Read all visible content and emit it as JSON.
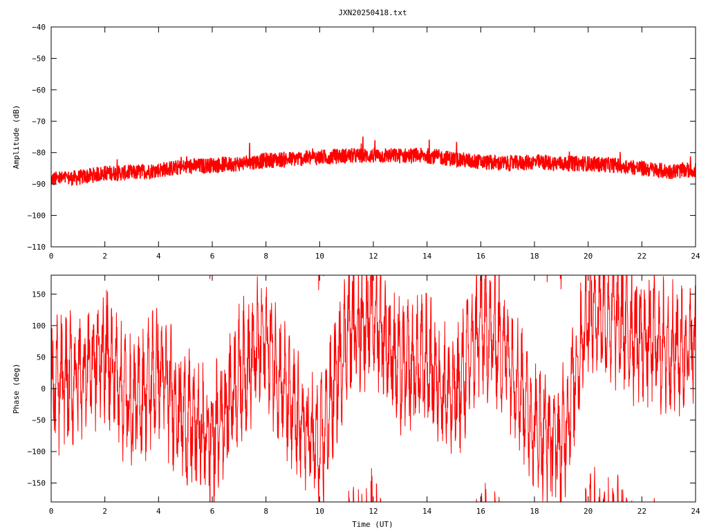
{
  "page_title": "JXN20250418.txt",
  "chart_data": [
    {
      "type": "line",
      "title": "JXN20250418.txt",
      "xlabel": "",
      "ylabel": "Amplitude (dB)",
      "xlim": [
        0,
        24
      ],
      "ylim": [
        -110,
        -40
      ],
      "xticks": [
        "0",
        "2",
        "4",
        "6",
        "8",
        "10",
        "12",
        "14",
        "16",
        "18",
        "20",
        "22",
        "24"
      ],
      "yticks": [
        "-40",
        "-50",
        "-60",
        "-70",
        "-80",
        "-90",
        "-100",
        "-110"
      ],
      "grid": false,
      "color": "#ff0000",
      "series": [
        {
          "x": [
            0,
            1,
            2,
            3,
            4,
            5,
            6,
            7,
            8,
            9,
            10,
            11,
            12,
            13,
            14,
            15,
            16,
            17,
            18,
            19,
            20,
            21,
            22,
            23,
            24
          ],
          "values": [
            -88.5,
            -88,
            -86.5,
            -86.5,
            -85.5,
            -84.5,
            -84,
            -83.5,
            -82.5,
            -82,
            -81.5,
            -81,
            -81,
            -81,
            -81,
            -82,
            -83,
            -83.5,
            -83,
            -83.5,
            -83.5,
            -84,
            -85,
            -86,
            -85.5
          ],
          "spread": 2.5
        }
      ]
    },
    {
      "type": "line",
      "title": "",
      "xlabel": "Time (UT)",
      "ylabel": "Phase (deg)",
      "xlim": [
        0,
        24
      ],
      "ylim": [
        -180,
        180
      ],
      "xticks": [
        "0",
        "2",
        "4",
        "6",
        "8",
        "10",
        "12",
        "14",
        "16",
        "18",
        "20",
        "22",
        "24"
      ],
      "yticks": [
        "150",
        "100",
        "50",
        "0",
        "-50",
        "-100",
        "-150"
      ],
      "grid": false,
      "color": "#ff0000",
      "series": [
        {
          "x": [
            0,
            1,
            2,
            3,
            4,
            5,
            6,
            7,
            8,
            9,
            10,
            11,
            12,
            13,
            14,
            15,
            16,
            17,
            18,
            19,
            20,
            21,
            22,
            23,
            24
          ],
          "values": [
            0,
            20,
            60,
            -30,
            30,
            -50,
            -80,
            20,
            80,
            -40,
            -100,
            90,
            120,
            30,
            40,
            -20,
            100,
            60,
            -60,
            -90,
            130,
            110,
            80,
            60,
            70
          ],
          "wraps": true
        }
      ]
    }
  ]
}
